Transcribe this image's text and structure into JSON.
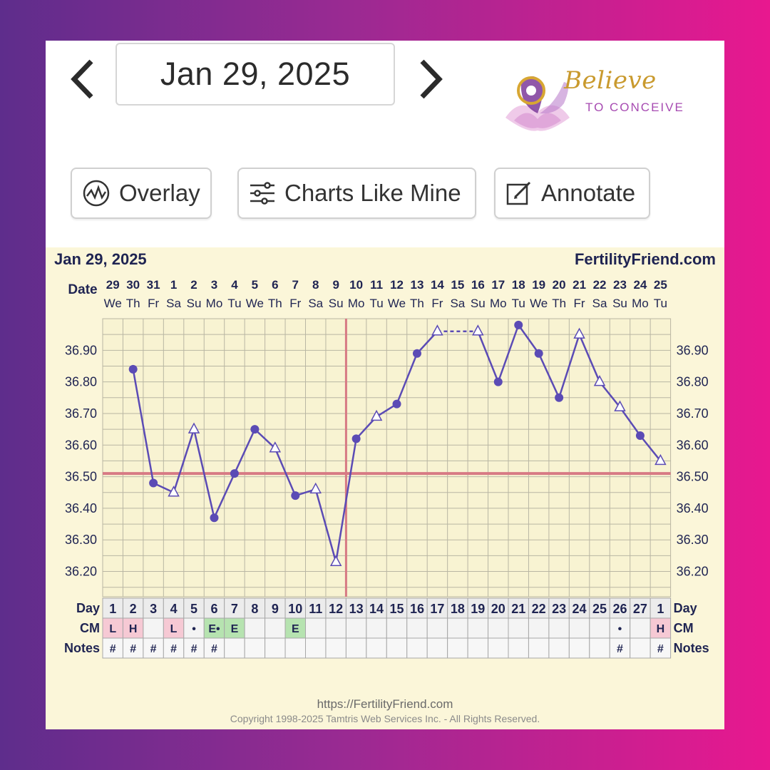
{
  "nav": {
    "date": "Jan 29, 2025"
  },
  "brand": {
    "name": "Believe",
    "tagline": "TO CONCEIVE"
  },
  "toolbar": {
    "overlay": "Overlay",
    "charts_like_mine": "Charts Like Mine",
    "annotate": "Annotate"
  },
  "chart_header": {
    "date": "Jan 29, 2025",
    "site": "FertilityFriend.com",
    "date_label": "Date"
  },
  "footer": {
    "url": "https://FertilityFriend.com",
    "copyright": "Copyright 1998-2025 Tamtris Web Services Inc. - All Rights Reserved."
  },
  "colors": {
    "line": "#5b4bb5",
    "coverline": "#d77a84",
    "grid": "#b9b6a3",
    "chart_bg": "#fbf6d9",
    "cm_L": "#f6c9d4",
    "cm_H": "#f6c9d4",
    "cm_E": "#b6e3b0"
  },
  "chart_data": {
    "type": "line",
    "title": "Jan 29, 2025",
    "dates": [
      "29",
      "30",
      "31",
      "1",
      "2",
      "3",
      "4",
      "5",
      "6",
      "7",
      "8",
      "9",
      "10",
      "11",
      "12",
      "13",
      "14",
      "15",
      "16",
      "17",
      "18",
      "19",
      "20",
      "21",
      "22",
      "23",
      "24",
      "25"
    ],
    "weekdays": [
      "We",
      "Th",
      "Fr",
      "Sa",
      "Su",
      "Mo",
      "Tu",
      "We",
      "Th",
      "Fr",
      "Sa",
      "Su",
      "Mo",
      "Tu",
      "We",
      "Th",
      "Fr",
      "Sa",
      "Su",
      "Mo",
      "Tu",
      "We",
      "Th",
      "Fr",
      "Sa",
      "Su",
      "Mo",
      "Tu"
    ],
    "cycle_days": [
      "1",
      "2",
      "3",
      "4",
      "5",
      "6",
      "7",
      "8",
      "9",
      "10",
      "11",
      "12",
      "13",
      "14",
      "15",
      "16",
      "17",
      "18",
      "19",
      "20",
      "21",
      "22",
      "23",
      "24",
      "25",
      "26",
      "27",
      "1"
    ],
    "row_labels": {
      "day": "Day",
      "cm": "CM",
      "notes": "Notes"
    },
    "ylim": [
      36.12,
      37.0
    ],
    "yticks": [
      "36.20",
      "36.30",
      "36.40",
      "36.50",
      "36.60",
      "36.70",
      "36.80",
      "36.90"
    ],
    "series": [
      {
        "values": [
          null,
          36.84,
          36.48,
          36.45,
          36.65,
          36.37,
          36.51,
          36.65,
          36.59,
          36.44,
          36.46,
          36.23,
          36.62,
          36.69,
          36.73,
          36.89,
          36.96,
          null,
          36.96,
          36.8,
          36.98,
          36.89,
          36.75,
          36.95,
          36.8,
          36.72,
          36.63,
          36.55
        ],
        "markers": [
          null,
          "dot",
          "dot",
          "tri",
          "tri",
          "dot",
          "dot",
          "dot",
          "tri",
          "dot",
          "tri",
          "tri",
          "dot",
          "tri",
          "dot",
          "dot",
          "tri",
          null,
          "tri",
          "dot",
          "dot",
          "dot",
          "dot",
          "tri",
          "tri",
          "tri",
          "dot",
          "tri"
        ]
      }
    ],
    "dashed_segment": [
      "14",
      "16"
    ],
    "coverline": 36.51,
    "ovulation_marker": "9",
    "cm": [
      "L",
      "H",
      "",
      "L",
      "•",
      "E•",
      "E",
      "",
      "",
      "E",
      "",
      "",
      "",
      "",
      "",
      "",
      "",
      "",
      "",
      "",
      "",
      "",
      "",
      "",
      "",
      "•",
      "",
      "H"
    ],
    "notes": [
      "#",
      "#",
      "#",
      "#",
      "#",
      "#",
      "",
      "",
      "",
      "",
      "",
      "",
      "",
      "",
      "",
      "",
      "",
      "",
      "",
      "",
      "",
      "",
      "",
      "",
      "",
      "#",
      "",
      "#"
    ],
    "grid": true
  }
}
